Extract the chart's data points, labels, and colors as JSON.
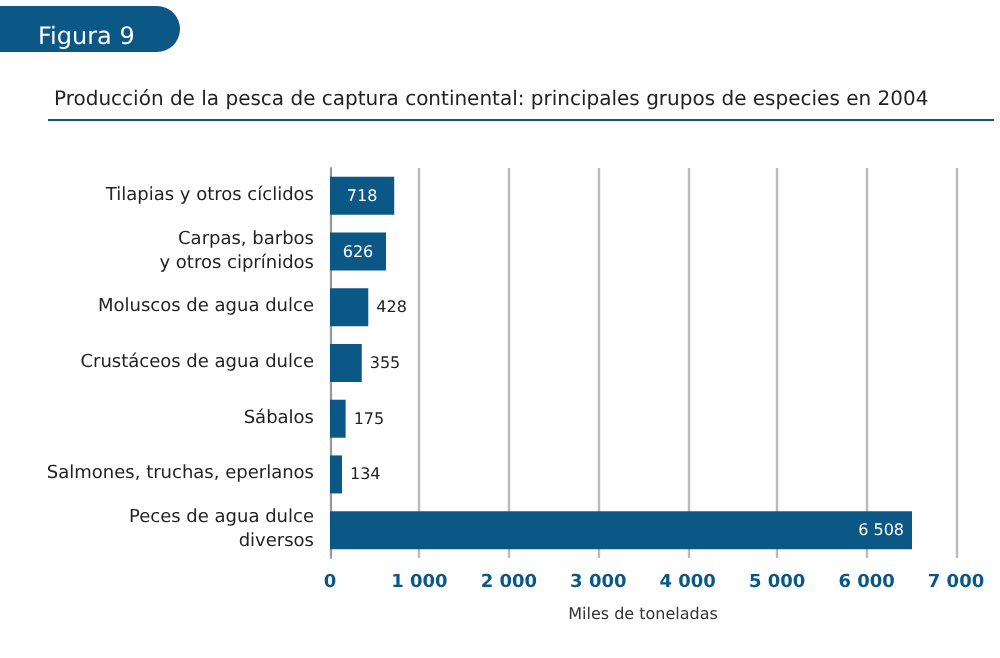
{
  "chart_data": {
    "type": "bar",
    "orientation": "horizontal",
    "title": "Figura 9",
    "subtitle": "Producción de la pesca de captura continental: principales grupos de especies en 2004",
    "xlabel": "Miles de toneladas",
    "categories": [
      "Tilapias y otros cíclidos",
      "Carpas, barbos\ny otros ciprínidos",
      "Moluscos de agua dulce",
      "Crustáceos de agua dulce",
      "Sábalos",
      "Salmones, truchas, eperlanos",
      "Peces de agua dulce\ndiversos"
    ],
    "values": [
      718,
      626,
      428,
      355,
      175,
      134,
      6508
    ],
    "value_labels": [
      "718",
      "626",
      "428",
      "355",
      "175",
      "134",
      "6 508"
    ],
    "color": "#0b5785",
    "xlim": [
      0,
      7000
    ],
    "xticks": [
      {
        "value": 0,
        "label": "0"
      },
      {
        "value": 1000,
        "label": "1 000"
      },
      {
        "value": 2000,
        "label": "2 000"
      },
      {
        "value": 3000,
        "label": "3 000"
      },
      {
        "value": 4000,
        "label": "4 000"
      },
      {
        "value": 5000,
        "label": "5 000"
      },
      {
        "value": 6000,
        "label": "6 000"
      },
      {
        "value": 7000,
        "label": "7 000"
      }
    ],
    "grid": "x"
  }
}
